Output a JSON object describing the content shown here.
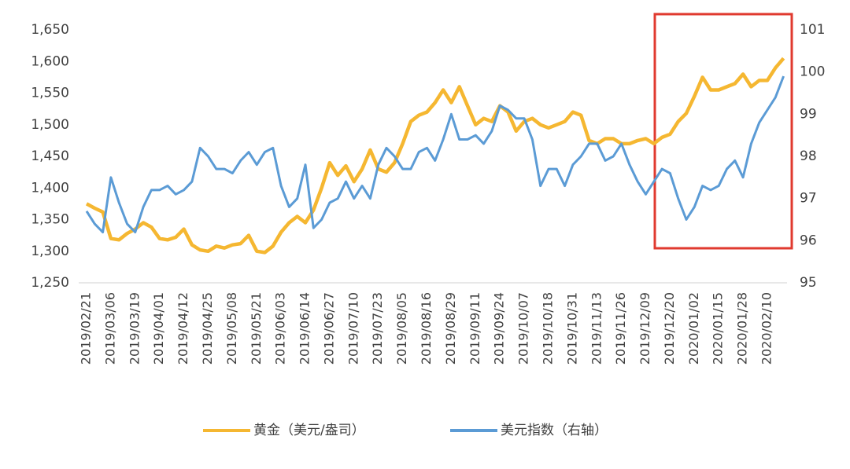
{
  "chart_data": {
    "type": "line",
    "categories": [
      "2019/02/21",
      null,
      null,
      "2019/03/06",
      null,
      null,
      "2019/03/19",
      null,
      null,
      "2019/04/01",
      null,
      null,
      "2019/04/12",
      null,
      null,
      "2019/04/25",
      null,
      null,
      "2019/05/08",
      null,
      null,
      "2019/05/21",
      null,
      null,
      "2019/06/03",
      null,
      null,
      "2019/06/14",
      null,
      null,
      "2019/06/27",
      null,
      null,
      "2019/07/10",
      null,
      null,
      "2019/07/23",
      null,
      null,
      "2019/08/05",
      null,
      null,
      "2019/08/16",
      null,
      null,
      "2019/08/29",
      null,
      null,
      "2019/09/11",
      null,
      null,
      "2019/09/24",
      null,
      null,
      "2019/10/07",
      null,
      null,
      "2019/10/18",
      null,
      null,
      "2019/10/31",
      null,
      null,
      "2019/11/13",
      null,
      null,
      "2019/11/26",
      null,
      null,
      "2019/12/09",
      null,
      null,
      "2019/12/20",
      null,
      null,
      "2020/01/02",
      null,
      null,
      "2020/01/15",
      null,
      null,
      "2020/01/28",
      null,
      null,
      "2020/02/10",
      null,
      null
    ],
    "series": [
      {
        "name": "黄金（美元/盎司）",
        "color": "#f5b731",
        "axis": "y",
        "values": [
          1375,
          1368,
          1362,
          1320,
          1318,
          1328,
          1335,
          1345,
          1338,
          1320,
          1318,
          1322,
          1335,
          1310,
          1302,
          1300,
          1308,
          1305,
          1310,
          1312,
          1325,
          1300,
          1298,
          1308,
          1330,
          1345,
          1355,
          1345,
          1365,
          1400,
          1440,
          1420,
          1435,
          1410,
          1430,
          1460,
          1430,
          1425,
          1440,
          1470,
          1505,
          1515,
          1520,
          1535,
          1555,
          1535,
          1560,
          1530,
          1500,
          1510,
          1505,
          1530,
          1520,
          1490,
          1505,
          1510,
          1500,
          1495,
          1500,
          1505,
          1520,
          1515,
          1475,
          1470,
          1478,
          1478,
          1470,
          1470,
          1475,
          1478,
          1470,
          1480,
          1485,
          1505,
          1518,
          1545,
          1575,
          1555,
          1555,
          1560,
          1565,
          1580,
          1560,
          1570,
          1570,
          1590,
          1605
        ]
      },
      {
        "name": "美元指数（右轴）",
        "color": "#5b9bd5",
        "axis": "y2",
        "values": [
          96.7,
          96.4,
          96.2,
          97.5,
          96.9,
          96.4,
          96.2,
          96.8,
          97.2,
          97.2,
          97.3,
          97.1,
          97.2,
          97.4,
          98.2,
          98.0,
          97.7,
          97.7,
          97.6,
          97.9,
          98.1,
          97.8,
          98.1,
          98.2,
          97.3,
          96.8,
          97.0,
          97.8,
          96.3,
          96.5,
          96.9,
          97.0,
          97.4,
          97.0,
          97.3,
          97.0,
          97.8,
          98.2,
          98.0,
          97.7,
          97.7,
          98.1,
          98.2,
          97.9,
          98.4,
          99.0,
          98.4,
          98.4,
          98.5,
          98.3,
          98.6,
          99.2,
          99.1,
          98.9,
          98.9,
          98.4,
          97.3,
          97.7,
          97.7,
          97.3,
          97.8,
          98.0,
          98.3,
          98.3,
          97.9,
          98.0,
          98.3,
          97.8,
          97.4,
          97.1,
          97.4,
          97.7,
          97.6,
          97.0,
          96.5,
          96.8,
          97.3,
          97.2,
          97.3,
          97.7,
          97.9,
          97.5,
          98.3,
          98.8,
          99.1,
          99.4,
          99.9
        ]
      }
    ],
    "ylim": [
      1250,
      1650
    ],
    "yticks": [
      {
        "value": 1250,
        "label": "1,250"
      },
      {
        "value": 1300,
        "label": "1,300"
      },
      {
        "value": 1350,
        "label": "1,350"
      },
      {
        "value": 1400,
        "label": "1,400"
      },
      {
        "value": 1450,
        "label": "1,450"
      },
      {
        "value": 1500,
        "label": "1,500"
      },
      {
        "value": 1550,
        "label": "1,550"
      },
      {
        "value": 1600,
        "label": "1,600"
      },
      {
        "value": 1650,
        "label": "1,650"
      }
    ],
    "y2lim": [
      95,
      101
    ],
    "y2ticks": [
      95,
      96,
      97,
      98,
      99,
      100,
      101
    ],
    "grid": false,
    "legend": "bottom"
  }
}
